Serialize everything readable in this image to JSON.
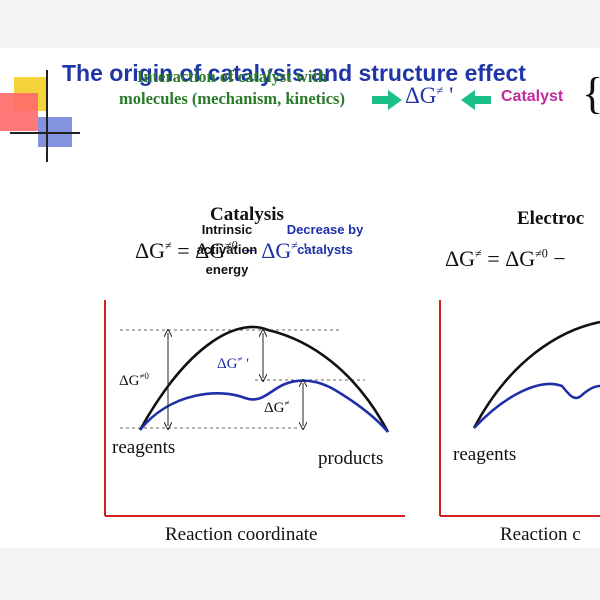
{
  "title": "The origin of catalysis and structure effect",
  "header": {
    "interaction_line1": "Interaction of catalyst with",
    "interaction_line2": "molecules (mechanism, kinetics)",
    "delta_g_prime": "ΔG≠'",
    "catalyst": "Catalyst",
    "brace": "{"
  },
  "left_panel": {
    "heading": "Catalysis",
    "equation_lhs": "ΔG≠ = ΔG≠0",
    "equation_rhs": "− ΔG≠'",
    "label_intrinsic_1": "Intrinsic",
    "label_intrinsic_2": "activation",
    "label_intrinsic_3": "energy",
    "label_decrease_1": "Decrease by",
    "label_decrease_2": "catalysts",
    "dg0_label": "ΔG≠0",
    "dgprime_label": "ΔG≠'",
    "dg_label": "ΔG≠",
    "reagents": "reagents",
    "products": "products",
    "xaxis": "Reaction coordinate"
  },
  "right_panel": {
    "heading": "Electroc",
    "equation": "ΔG≠ = ΔG≠0 −",
    "reagents": "reagents",
    "xaxis": "Reaction c"
  },
  "colors": {
    "title": "#1f35a8",
    "green": "#2a7a2a",
    "arrow": "#1abf8a",
    "magenta": "#c02a9a",
    "axis": "#d02020",
    "catalyzed_curve": "#1f2fa8",
    "uncatalyzed_curve": "#111111"
  }
}
